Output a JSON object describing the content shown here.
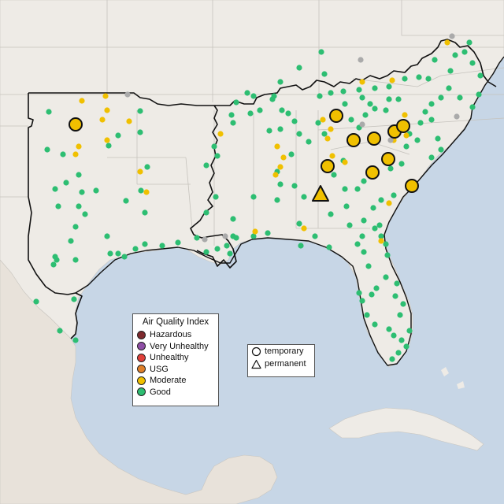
{
  "legend": {
    "title": "Air Quality Index",
    "categories": [
      {
        "label": "Hazardous",
        "color": "#7e2a2e"
      },
      {
        "label": "Very Unhealthy",
        "color": "#8f4fa6"
      },
      {
        "label": "Unhealthy",
        "color": "#e0403a"
      },
      {
        "label": "USG",
        "color": "#e0802a"
      },
      {
        "label": "Moderate",
        "color": "#f0c000"
      },
      {
        "label": "Good",
        "color": "#2dbe72"
      }
    ]
  },
  "monitor_types": [
    {
      "label": "temporary",
      "symbol": "circle-icon"
    },
    {
      "label": "permanent",
      "symbol": "triangle-icon"
    }
  ],
  "colors": {
    "good": "#2dbe72",
    "moderate": "#f0c000",
    "no_data": "#aaaaaa",
    "land": "#eeebe6",
    "water": "#c7d6e6"
  }
}
